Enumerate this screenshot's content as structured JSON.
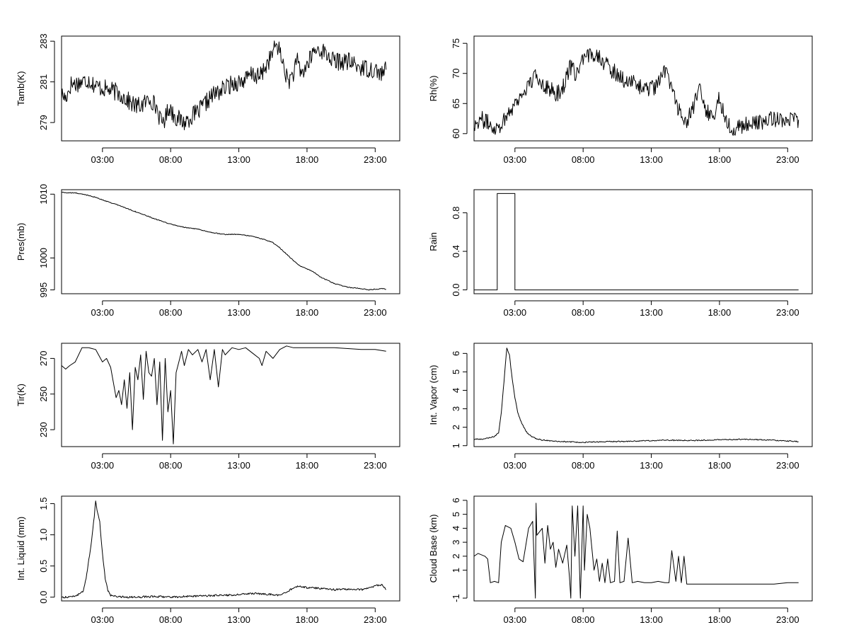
{
  "figure": {
    "title": ""
  },
  "chart_data": [
    {
      "id": "tamb",
      "type": "line",
      "ylabel": "Tamb(K)",
      "xlim": [
        0,
        24.8
      ],
      "ylim": [
        278.1,
        283.25
      ],
      "yticks": [
        279,
        281,
        283
      ],
      "xticks": [
        3,
        8,
        13,
        18,
        23
      ],
      "xticklabels": [
        "03:00",
        "08:00",
        "13:00",
        "18:00",
        "23:00"
      ],
      "noise": 0.45,
      "x": [
        0.0,
        0.3,
        0.7,
        1.0,
        1.5,
        2.0,
        2.5,
        3.0,
        3.5,
        4.0,
        4.5,
        5.0,
        5.5,
        6.0,
        6.5,
        7.0,
        7.3,
        7.6,
        7.9,
        8.2,
        8.5,
        9.0,
        9.5,
        10.0,
        10.5,
        11.0,
        11.5,
        12.0,
        12.5,
        13.0,
        13.5,
        14.0,
        14.5,
        15.0,
        15.4,
        15.8,
        16.2,
        16.6,
        17.0,
        17.3,
        17.6,
        18.0,
        18.5,
        19.0,
        19.5,
        20.0,
        21.0,
        22.0,
        23.0,
        23.5,
        23.8
      ],
      "y": [
        280.4,
        280.2,
        280.9,
        280.9,
        281.0,
        281.1,
        280.8,
        280.7,
        280.6,
        280.5,
        280.3,
        280.0,
        279.8,
        279.9,
        280.2,
        279.7,
        279.0,
        279.2,
        279.8,
        279.4,
        279.2,
        279.0,
        279.3,
        279.5,
        279.9,
        280.3,
        280.5,
        280.7,
        280.9,
        281.0,
        281.1,
        281.4,
        281.2,
        281.8,
        282.3,
        282.9,
        282.0,
        281.0,
        281.4,
        282.0,
        281.4,
        281.8,
        282.5,
        282.6,
        282.3,
        282.0,
        282.0,
        281.7,
        281.6,
        281.4,
        281.6
      ]
    },
    {
      "id": "rh",
      "type": "line",
      "ylabel": "Rh(%)",
      "xlim": [
        0,
        24.8
      ],
      "ylim": [
        58.8,
        76.2
      ],
      "yticks": [
        60,
        65,
        70,
        75
      ],
      "xticks": [
        3,
        8,
        13,
        18,
        23
      ],
      "xticklabels": [
        "03:00",
        "08:00",
        "13:00",
        "18:00",
        "23:00"
      ],
      "noise": 1.4,
      "x": [
        0.0,
        0.5,
        1.0,
        1.5,
        2.0,
        2.5,
        3.0,
        3.5,
        4.0,
        4.5,
        5.0,
        5.5,
        6.0,
        6.5,
        7.0,
        7.5,
        8.0,
        8.5,
        9.0,
        9.5,
        10.0,
        10.5,
        11.0,
        11.5,
        12.0,
        12.5,
        13.0,
        13.5,
        14.0,
        14.5,
        15.0,
        15.5,
        16.0,
        16.5,
        17.0,
        17.5,
        18.0,
        18.5,
        19.0,
        19.5,
        20.0,
        21.0,
        22.0,
        23.0,
        23.8
      ],
      "y": [
        61.5,
        62.5,
        61.8,
        61.0,
        61.5,
        63.5,
        65.0,
        66.5,
        68.0,
        69.5,
        68.5,
        67.5,
        66.5,
        67.5,
        71.0,
        70.0,
        72.0,
        73.0,
        73.5,
        72.0,
        70.5,
        70.0,
        69.0,
        68.5,
        68.0,
        67.5,
        67.5,
        68.0,
        70.5,
        68.0,
        64.0,
        62.0,
        63.5,
        67.5,
        64.0,
        62.5,
        66.0,
        62.0,
        61.0,
        61.0,
        61.5,
        61.8,
        62.5,
        62.5,
        62.3
      ]
    },
    {
      "id": "pres",
      "type": "line",
      "ylabel": "Pres(mb)",
      "xlim": [
        0,
        24.8
      ],
      "ylim": [
        994.4,
        1010.7
      ],
      "yticks": [
        995,
        1000,
        1010
      ],
      "xticks": [
        3,
        8,
        13,
        18,
        23
      ],
      "xticklabels": [
        "03:00",
        "08:00",
        "13:00",
        "18:00",
        "23:00"
      ],
      "noise": 0.06,
      "x": [
        0.0,
        0.5,
        1.0,
        1.5,
        2.0,
        2.5,
        3.0,
        4.0,
        5.0,
        6.0,
        7.0,
        8.0,
        9.0,
        10.0,
        11.0,
        12.0,
        13.0,
        14.0,
        15.0,
        15.5,
        16.0,
        16.5,
        17.0,
        17.5,
        18.0,
        18.5,
        19.0,
        20.0,
        21.0,
        22.0,
        22.5,
        23.0,
        23.5,
        23.8
      ],
      "y": [
        1010.3,
        1010.2,
        1010.2,
        1010.0,
        1009.8,
        1009.5,
        1009.1,
        1008.4,
        1007.6,
        1006.8,
        1006.0,
        1005.3,
        1004.8,
        1004.5,
        1004.0,
        1003.7,
        1003.7,
        1003.4,
        1002.8,
        1002.4,
        1001.6,
        1000.6,
        999.6,
        998.7,
        998.3,
        997.8,
        997.0,
        996.0,
        995.4,
        995.2,
        995.0,
        995.1,
        995.2,
        995.1
      ]
    },
    {
      "id": "rain",
      "type": "line",
      "ylabel": "Rain",
      "xlim": [
        0,
        24.8
      ],
      "ylim": [
        -0.04,
        1.04
      ],
      "yticks": [
        0.0,
        0.4,
        0.8
      ],
      "yticklabels": [
        "0.0",
        "0.4",
        "0.8"
      ],
      "xticks": [
        3,
        8,
        13,
        18,
        23
      ],
      "xticklabels": [
        "03:00",
        "08:00",
        "13:00",
        "18:00",
        "23:00"
      ],
      "noise": 0,
      "x": [
        0.0,
        1.7,
        1.7,
        3.0,
        3.0,
        23.8
      ],
      "y": [
        0,
        0,
        1,
        1,
        0,
        0
      ]
    },
    {
      "id": "tir",
      "type": "line",
      "ylabel": "Tir(K)",
      "xlim": [
        0,
        24.8
      ],
      "ylim": [
        220.5,
        278.5
      ],
      "yticks": [
        230,
        250,
        270
      ],
      "xticks": [
        3,
        8,
        13,
        18,
        23
      ],
      "xticklabels": [
        "03:00",
        "08:00",
        "13:00",
        "18:00",
        "23:00"
      ],
      "noise": 0,
      "x": [
        0.0,
        0.3,
        0.6,
        1.0,
        1.5,
        2.0,
        2.5,
        3.0,
        3.3,
        3.6,
        4.0,
        4.2,
        4.4,
        4.6,
        4.8,
        5.0,
        5.2,
        5.4,
        5.6,
        5.8,
        6.0,
        6.2,
        6.4,
        6.6,
        6.8,
        7.0,
        7.2,
        7.4,
        7.6,
        7.8,
        8.0,
        8.2,
        8.4,
        8.6,
        8.8,
        9.0,
        9.3,
        9.6,
        10.0,
        10.3,
        10.6,
        10.9,
        11.2,
        11.5,
        11.8,
        12.0,
        12.5,
        13.0,
        13.5,
        14.0,
        14.5,
        14.7,
        15.0,
        15.5,
        16.0,
        16.5,
        17.0,
        18.0,
        20.0,
        22.0,
        23.0,
        23.8
      ],
      "y": [
        266,
        264,
        266,
        268,
        276,
        276,
        275,
        268,
        270,
        265,
        248,
        252,
        244,
        258,
        242,
        262,
        230,
        265,
        258,
        272,
        247,
        274,
        262,
        260,
        270,
        244,
        268,
        224,
        270,
        240,
        252,
        222,
        262,
        268,
        274,
        266,
        275,
        272,
        275,
        268,
        275,
        258,
        275,
        254,
        275,
        272,
        276,
        275,
        276,
        273,
        270,
        266,
        274,
        270,
        275,
        277,
        276,
        276,
        276,
        275,
        275,
        274
      ]
    },
    {
      "id": "vapor",
      "type": "line",
      "ylabel": "Int. Vapor (cm)",
      "xlim": [
        0,
        24.8
      ],
      "ylim": [
        0.95,
        6.55
      ],
      "yticks": [
        1,
        2,
        3,
        4,
        5,
        6
      ],
      "xticks": [
        3,
        8,
        13,
        18,
        23
      ],
      "xticklabels": [
        "03:00",
        "08:00",
        "13:00",
        "18:00",
        "23:00"
      ],
      "noise": 0.03,
      "x": [
        0.0,
        0.5,
        1.0,
        1.5,
        1.8,
        2.0,
        2.2,
        2.4,
        2.6,
        2.8,
        3.0,
        3.2,
        3.5,
        3.8,
        4.0,
        4.5,
        5.0,
        6.0,
        7.0,
        8.0,
        10.0,
        12.0,
        14.0,
        16.0,
        18.0,
        20.0,
        22.0,
        23.8
      ],
      "y": [
        1.35,
        1.35,
        1.4,
        1.5,
        1.7,
        2.8,
        4.5,
        6.3,
        5.9,
        4.6,
        3.6,
        2.8,
        2.2,
        1.8,
        1.6,
        1.4,
        1.3,
        1.25,
        1.2,
        1.18,
        1.22,
        1.25,
        1.3,
        1.28,
        1.32,
        1.35,
        1.3,
        1.22
      ]
    },
    {
      "id": "liquid",
      "type": "line",
      "ylabel": "Int. Liquid (mm)",
      "xlim": [
        0,
        24.8
      ],
      "ylim": [
        -0.06,
        1.62
      ],
      "yticks": [
        0.0,
        0.5,
        1.0,
        1.5
      ],
      "yticklabels": [
        "0.0",
        "0.5",
        "1.0",
        "1.5"
      ],
      "xticks": [
        3,
        8,
        13,
        18,
        23
      ],
      "xticklabels": [
        "03:00",
        "08:00",
        "13:00",
        "18:00",
        "23:00"
      ],
      "noise": 0.015,
      "x": [
        0.0,
        0.5,
        1.0,
        1.3,
        1.6,
        1.8,
        2.0,
        2.2,
        2.4,
        2.5,
        2.6,
        2.8,
        3.0,
        3.2,
        3.4,
        3.6,
        4.0,
        5.0,
        7.0,
        8.0,
        10.0,
        12.0,
        13.0,
        14.0,
        15.0,
        16.0,
        16.5,
        17.0,
        17.5,
        18.0,
        19.0,
        20.0,
        21.0,
        22.0,
        23.0,
        23.5,
        23.8
      ],
      "y": [
        0,
        0,
        0.02,
        0.05,
        0.1,
        0.3,
        0.6,
        0.9,
        1.3,
        1.55,
        1.4,
        1.2,
        0.7,
        0.3,
        0.1,
        0.03,
        0.01,
        0,
        0.01,
        0,
        0.02,
        0.03,
        0.04,
        0.06,
        0.05,
        0.03,
        0.08,
        0.15,
        0.18,
        0.15,
        0.14,
        0.12,
        0.13,
        0.12,
        0.18,
        0.2,
        0.12
      ]
    },
    {
      "id": "cloud",
      "type": "line",
      "ylabel": "Cloud Base (km)",
      "xlim": [
        0,
        24.8
      ],
      "ylim": [
        -1.2,
        6.3
      ],
      "yticks": [
        -1,
        1,
        2,
        3,
        4,
        5,
        6
      ],
      "xticks": [
        3,
        8,
        13,
        18,
        23
      ],
      "xticklabels": [
        "03:00",
        "08:00",
        "13:00",
        "18:00",
        "23:00"
      ],
      "noise": 0,
      "x": [
        0.0,
        0.3,
        0.8,
        1.0,
        1.2,
        1.5,
        1.8,
        2.0,
        2.3,
        2.7,
        3.0,
        3.3,
        3.6,
        4.0,
        4.3,
        4.5,
        4.55,
        4.6,
        5.0,
        5.2,
        5.4,
        5.6,
        5.8,
        6.0,
        6.2,
        6.5,
        6.8,
        7.0,
        7.1,
        7.2,
        7.4,
        7.6,
        7.8,
        8.0,
        8.1,
        8.3,
        8.5,
        8.8,
        9.0,
        9.2,
        9.4,
        9.6,
        9.8,
        10.0,
        10.3,
        10.5,
        10.7,
        11.0,
        11.3,
        11.6,
        12.0,
        12.5,
        13.0,
        13.5,
        14.0,
        14.3,
        14.5,
        14.8,
        15.0,
        15.2,
        15.4,
        15.6,
        16.0,
        18.0,
        20.0,
        22.0,
        23.0,
        23.8
      ],
      "y": [
        2.0,
        2.2,
        2.0,
        1.8,
        0.1,
        0.2,
        0.1,
        3.0,
        4.2,
        4.0,
        3.0,
        1.8,
        1.6,
        4.0,
        4.5,
        -1.0,
        5.8,
        3.5,
        4.0,
        1.5,
        4.2,
        2.5,
        3.0,
        1.2,
        2.5,
        1.5,
        2.8,
        0.5,
        -1.0,
        5.6,
        2.0,
        5.6,
        -1.0,
        5.6,
        1.0,
        5.0,
        4.0,
        1.0,
        1.8,
        0.2,
        1.5,
        0.1,
        1.8,
        0.1,
        0.2,
        3.8,
        0.1,
        0.2,
        3.3,
        0.1,
        0.2,
        0.1,
        0.1,
        0.2,
        0.1,
        0.1,
        2.4,
        0.2,
        2.0,
        0.1,
        2.0,
        0.0,
        0.0,
        0.0,
        0.0,
        0.0,
        0.1,
        0.1
      ]
    }
  ]
}
